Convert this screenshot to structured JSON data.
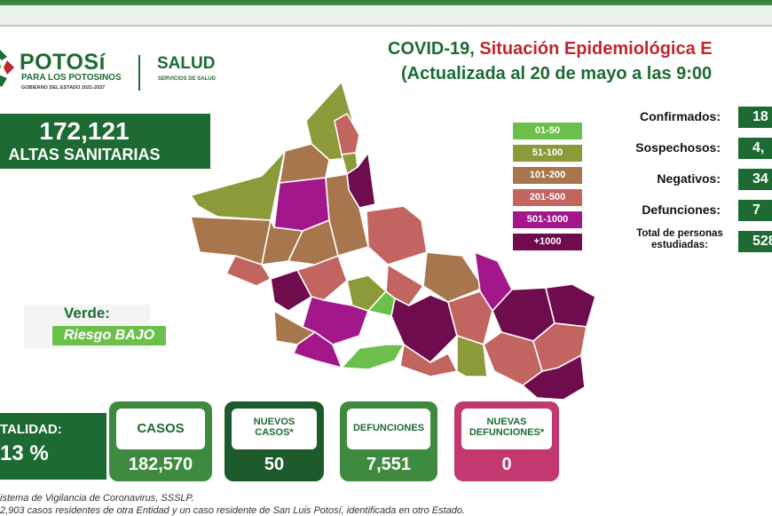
{
  "header": {
    "logo_brand": "POTOSí",
    "logo_tagline": "PARA LOS POTOSINOS",
    "logo_gov": "GOBIERNO DEL ESTADO 2021-2027",
    "salud": "SALUD",
    "salud_sub": "SERVICIOS DE SALUD",
    "title_part1": "COVID-19, ",
    "title_part2": "Situación Epidemiológica E",
    "subtitle": "(Actualizada al 20 de mayo a las 9:00"
  },
  "altas": {
    "value": "172,121",
    "label": "ALTAS SANITARIAS"
  },
  "semaforo": {
    "label": "Verde:",
    "risk": "Riesgo BAJO"
  },
  "legend": [
    {
      "label": "01-50",
      "color": "#6cbf4a"
    },
    {
      "label": "51-100",
      "color": "#8c9a3a"
    },
    {
      "label": "101-200",
      "color": "#a8764c"
    },
    {
      "label": "201-500",
      "color": "#c26460"
    },
    {
      "label": "501-1000",
      "color": "#a3178a"
    },
    {
      "label": "+1000",
      "color": "#6e0c4d"
    }
  ],
  "stats": [
    {
      "label": "Confirmados:",
      "value": "18"
    },
    {
      "label": "Sospechosos:",
      "value": "4,"
    },
    {
      "label": "Negativos:",
      "value": "34"
    },
    {
      "label": "Defunciones:",
      "value": "7"
    },
    {
      "label": "Total de personas estudiadas:",
      "value": "528"
    }
  ],
  "letalidad": {
    "label": "TALIDAD:",
    "value": "13 %"
  },
  "cards": [
    {
      "label": "CASOS",
      "value": "182,570",
      "color": "#3e8a3f"
    },
    {
      "label": "NUEVOS CASOS*",
      "value": "50",
      "color": "#1d5a2c"
    },
    {
      "label": "DEFUNCIONES",
      "value": "7,551",
      "color": "#3e8a3f"
    },
    {
      "label": "NUEVAS DEFUNCIONES*",
      "value": "0",
      "color": "#c2386f"
    }
  ],
  "footer": {
    "line1": "istema de Vigilancia de Coronavirus, SSSLP.",
    "line2": "2,903 casos residentes de otra Entidad y un caso residente de San Luis Potosí, identificada en otro Estado."
  }
}
